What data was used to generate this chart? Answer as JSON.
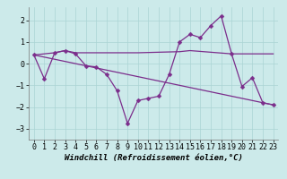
{
  "xlabel": "Windchill (Refroidissement éolien,°C)",
  "line1_x": [
    0,
    1,
    2,
    3,
    4,
    5,
    6,
    7,
    8,
    9,
    10,
    11,
    12,
    13,
    14,
    15,
    16,
    17,
    18,
    19,
    20,
    21,
    22,
    23
  ],
  "line1_y": [
    0.4,
    -0.7,
    0.5,
    0.6,
    0.45,
    -0.1,
    -0.15,
    -0.5,
    -1.25,
    -2.75,
    -1.7,
    -1.6,
    -1.5,
    -0.5,
    1.0,
    1.35,
    1.2,
    1.75,
    2.2,
    0.45,
    -1.05,
    -0.65,
    -1.8,
    -1.9
  ],
  "line2_x": [
    0,
    2,
    3,
    4,
    10,
    14,
    15,
    19,
    23
  ],
  "line2_y": [
    0.4,
    0.5,
    0.6,
    0.5,
    0.5,
    0.55,
    0.6,
    0.45,
    0.45
  ],
  "line3_x": [
    0,
    23
  ],
  "line3_y": [
    0.4,
    -1.9
  ],
  "color": "#7b2d8b",
  "bg_color": "#cceaea",
  "grid_color": "#aad4d4",
  "xlim": [
    -0.5,
    23.5
  ],
  "ylim": [
    -3.5,
    2.6
  ],
  "yticks": [
    -3,
    -2,
    -1,
    0,
    1,
    2
  ],
  "xticks": [
    0,
    1,
    2,
    3,
    4,
    5,
    6,
    7,
    8,
    9,
    10,
    11,
    12,
    13,
    14,
    15,
    16,
    17,
    18,
    19,
    20,
    21,
    22,
    23
  ],
  "xlabel_fontsize": 6.5,
  "tick_fontsize": 6.0,
  "lw": 0.9,
  "marker_size": 2.5
}
